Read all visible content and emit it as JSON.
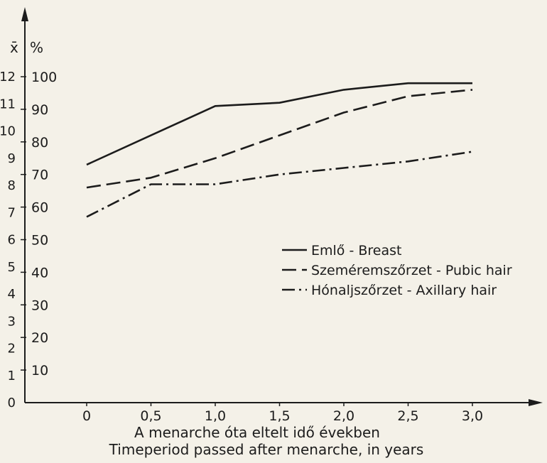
{
  "chart_data": {
    "type": "line",
    "x": [
      0,
      0.5,
      1.0,
      1.5,
      2.0,
      2.5,
      3.0
    ],
    "x_tick_labels": [
      "0",
      "0,5",
      "1,0",
      "1,5",
      "2,0",
      "2,5",
      "3,0"
    ],
    "xlim": [
      0,
      3.0
    ],
    "ylim": [
      0,
      100
    ],
    "y_ticks_percent": [
      "10",
      "20",
      "30",
      "40",
      "50",
      "60",
      "70",
      "80",
      "90",
      "100"
    ],
    "y_ticks_mean": [
      "0",
      "1",
      "2",
      "3",
      "4",
      "5",
      "6",
      "7",
      "8",
      "9",
      "10",
      "11",
      "12"
    ],
    "y_axis_label_mean": "x̄",
    "y_axis_label_percent": "%",
    "xlabel_line1": "A menarche óta eltelt idő években",
    "xlabel_line2": "Timeperiod passed after menarche, in years",
    "legend_position": "right-center",
    "series": [
      {
        "name": "Emlő - Breast",
        "style": "solid",
        "values": [
          73,
          82,
          91,
          92,
          96,
          98,
          98
        ]
      },
      {
        "name": "Szeméremszőrzet - Pubic hair",
        "style": "dashed",
        "values": [
          66,
          69,
          75,
          82,
          89,
          94,
          96
        ]
      },
      {
        "name": "Hónaljszőrzet - Axillary hair",
        "style": "dashdot",
        "values": [
          57,
          67,
          67,
          70,
          72,
          74,
          77
        ]
      }
    ],
    "grid": false,
    "color": "#1c1c1c"
  }
}
